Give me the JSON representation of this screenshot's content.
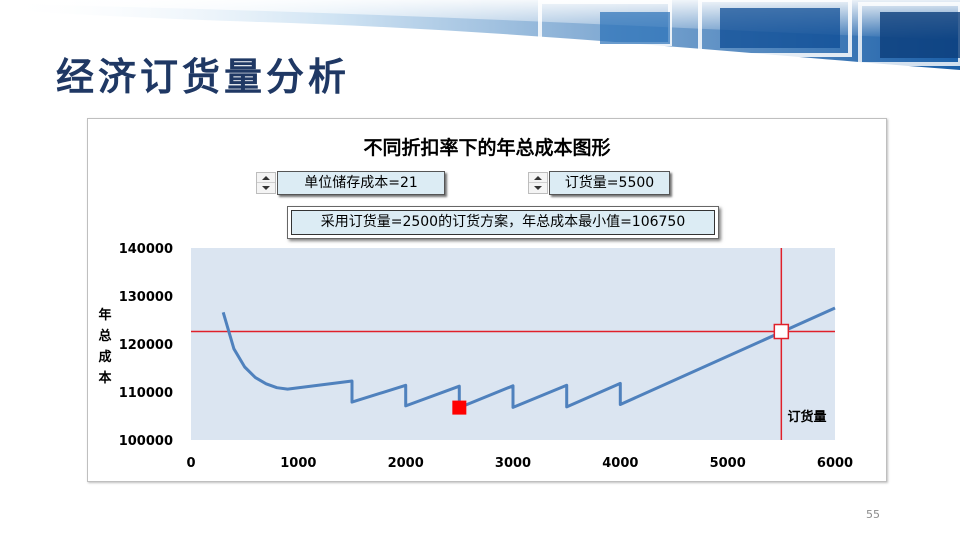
{
  "slide": {
    "title": "经济订货量分析",
    "page_number": "55"
  },
  "controls": {
    "holding_cost_label": "单位储存成本=21",
    "order_qty_label": "订货量=5500",
    "result_text": "采用订货量=2500的订货方案，年总成本最小值=106750"
  },
  "colors": {
    "series": "#4f81bd",
    "plot_bg": "#dbe5f1",
    "crosshair": "#e0202a",
    "min_marker": "#ff0000",
    "title_text": "#1f3864"
  },
  "chart_data": {
    "type": "line",
    "title": "不同折扣率下的年总成本图形",
    "xlabel": "订货量",
    "ylabel": "年总成本",
    "xlim": [
      0,
      6000
    ],
    "ylim": [
      100000,
      140000
    ],
    "x_ticks": [
      "0",
      "1000",
      "2000",
      "3000",
      "4000",
      "5000",
      "6000"
    ],
    "y_ticks": [
      "100000",
      "110000",
      "120000",
      "130000",
      "140000"
    ],
    "grid": false,
    "series": [
      {
        "x": [
          300,
          400,
          500,
          600,
          700,
          800,
          900,
          1500,
          1500,
          2000,
          2000,
          2500,
          2500,
          3000,
          3000,
          3500,
          3500,
          4000,
          4000,
          6000
        ],
        "y": [
          126600,
          119000,
          115200,
          113000,
          111700,
          110900,
          110600,
          112300,
          107900,
          111400,
          107100,
          111200,
          106750,
          111300,
          106800,
          111400,
          106900,
          111800,
          107400,
          127500
        ]
      }
    ],
    "min_point": {
      "x": 2500,
      "y": 106750
    },
    "current_point": {
      "x": 5500,
      "y": 122600
    }
  }
}
